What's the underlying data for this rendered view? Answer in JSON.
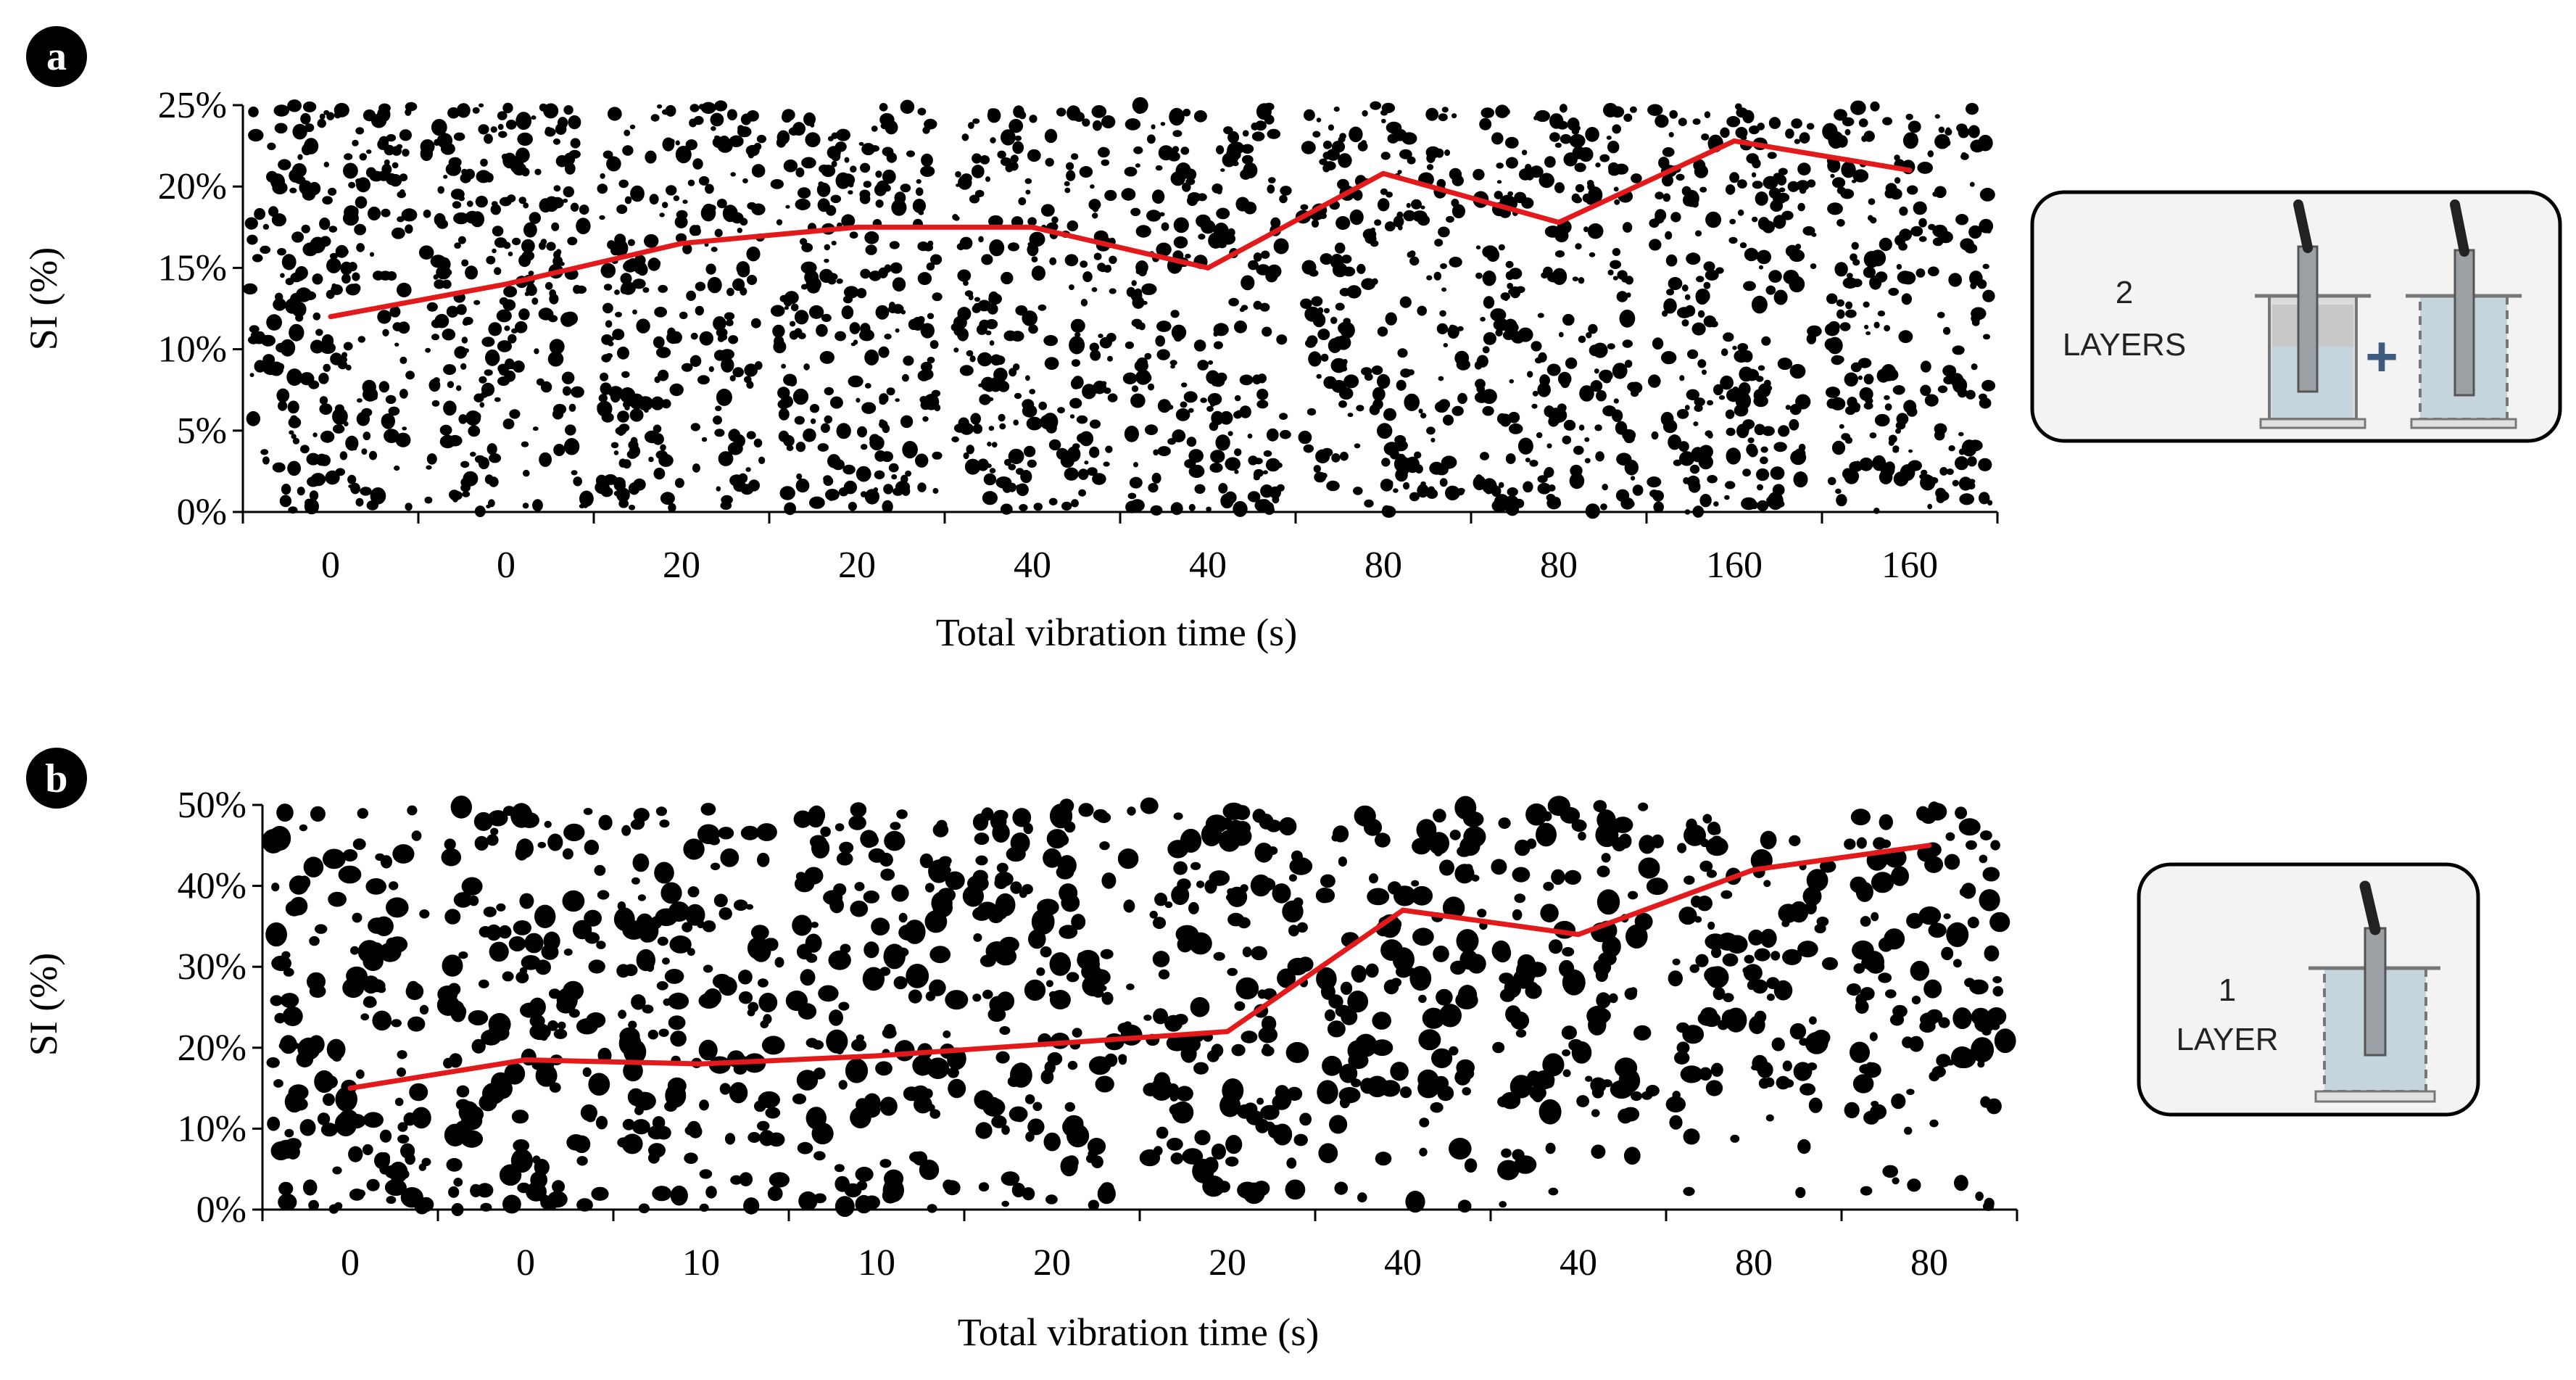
{
  "panels": [
    {
      "id": "a",
      "badge": "a",
      "ylabel": "SI (%)",
      "xlabel": "Total vibration time (s)",
      "yticks": [
        "0%",
        "5%",
        "10%",
        "15%",
        "20%",
        "25%"
      ],
      "legend_lines": [
        "2",
        "LAYERS"
      ],
      "legend_plus": "+"
    },
    {
      "id": "b",
      "badge": "b",
      "ylabel": "SI (%)",
      "xlabel": "Total vibration time (s)",
      "yticks": [
        "0%",
        "10%",
        "20%",
        "30%",
        "40%",
        "50%"
      ],
      "legend_lines": [
        "1",
        "LAYER"
      ],
      "legend_plus": ""
    }
  ],
  "colors": {
    "line": "#e31a1c",
    "pores": "#000000",
    "container_fill": "#c5d5de",
    "legend_bg": "#f3f3f3"
  },
  "chart_data": [
    {
      "type": "line",
      "title": "",
      "xlabel": "Total vibration time (s)",
      "ylabel": "SI (%)",
      "categories": [
        "0",
        "0",
        "20",
        "20",
        "40",
        "40",
        "80",
        "80",
        "160",
        "160"
      ],
      "series": [
        {
          "name": "SI",
          "values": [
            12,
            14,
            16.5,
            17.5,
            17.5,
            15,
            20.8,
            17.8,
            22.8,
            21
          ]
        }
      ],
      "ylim": [
        0,
        25
      ]
    },
    {
      "type": "line",
      "title": "",
      "xlabel": "Total vibration time (s)",
      "ylabel": "SI (%)",
      "categories": [
        "0",
        "0",
        "10",
        "10",
        "20",
        "20",
        "40",
        "40",
        "80",
        "80"
      ],
      "series": [
        {
          "name": "SI",
          "values": [
            15,
            18.5,
            18,
            19,
            20.5,
            22,
            37,
            34,
            42,
            45
          ]
        }
      ],
      "ylim": [
        0,
        50
      ]
    }
  ]
}
